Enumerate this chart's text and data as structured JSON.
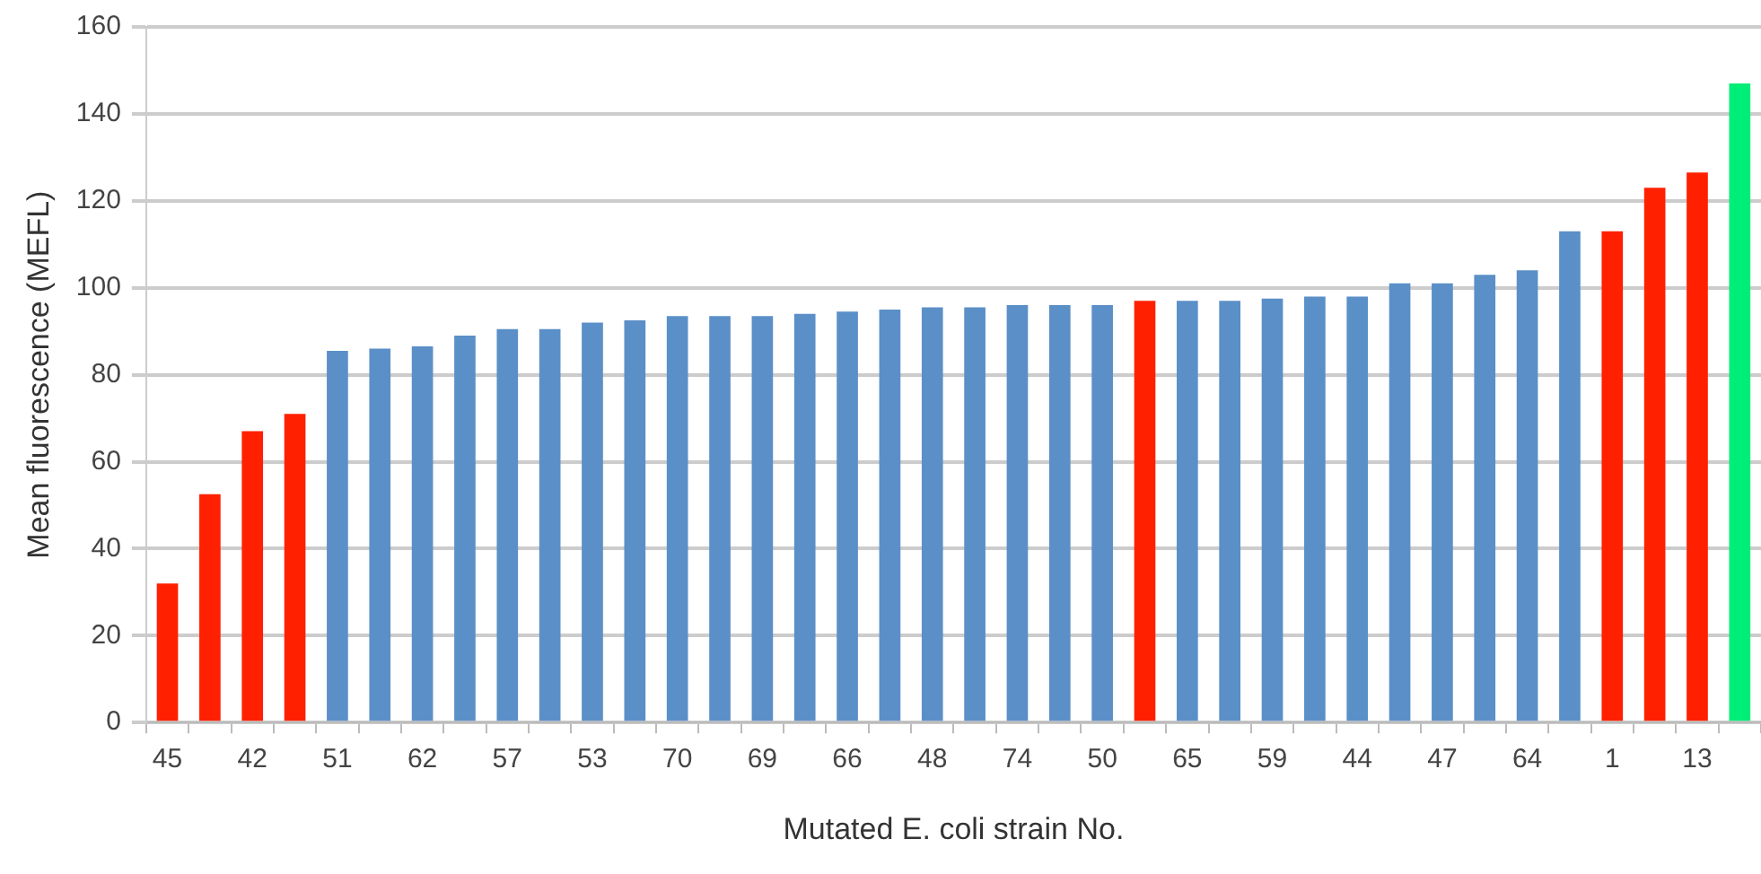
{
  "chart_data": {
    "type": "bar",
    "xlabel": "Mutated E. coli strain No.",
    "ylabel": "Mean fluorescence (MEFL)",
    "categories": [
      "45",
      null,
      "42",
      null,
      "51",
      null,
      "62",
      null,
      "57",
      null,
      "53",
      null,
      "70",
      null,
      "69",
      null,
      "66",
      null,
      "48",
      null,
      "74",
      null,
      "50",
      null,
      "65",
      null,
      "59",
      null,
      "44",
      null,
      "47",
      null,
      "64",
      null,
      "1",
      null,
      "13",
      null
    ],
    "values": [
      32,
      52.5,
      67,
      71,
      85.5,
      86,
      86.5,
      89,
      90.5,
      90.5,
      92,
      92.5,
      93.5,
      93.5,
      93.5,
      94,
      94.5,
      95,
      95.5,
      95.5,
      96,
      96,
      96,
      97,
      97,
      97,
      97.5,
      98,
      98,
      101,
      101,
      103,
      104,
      113,
      113,
      123,
      126.5,
      147
    ],
    "colors": [
      "#ff2000",
      "#ff2000",
      "#ff2000",
      "#ff2000",
      "#5b8fc7",
      "#5b8fc7",
      "#5b8fc7",
      "#5b8fc7",
      "#5b8fc7",
      "#5b8fc7",
      "#5b8fc7",
      "#5b8fc7",
      "#5b8fc7",
      "#5b8fc7",
      "#5b8fc7",
      "#5b8fc7",
      "#5b8fc7",
      "#5b8fc7",
      "#5b8fc7",
      "#5b8fc7",
      "#5b8fc7",
      "#5b8fc7",
      "#5b8fc7",
      "#ff2000",
      "#5b8fc7",
      "#5b8fc7",
      "#5b8fc7",
      "#5b8fc7",
      "#5b8fc7",
      "#5b8fc7",
      "#5b8fc7",
      "#5b8fc7",
      "#5b8fc7",
      "#5b8fc7",
      "#ff2000",
      "#ff2000",
      "#ff2000",
      "#00ee77"
    ],
    "ylim": [
      0,
      160
    ],
    "yticks": [
      0,
      20,
      40,
      60,
      80,
      100,
      120,
      140,
      160
    ],
    "grid": "y",
    "legend": false
  }
}
